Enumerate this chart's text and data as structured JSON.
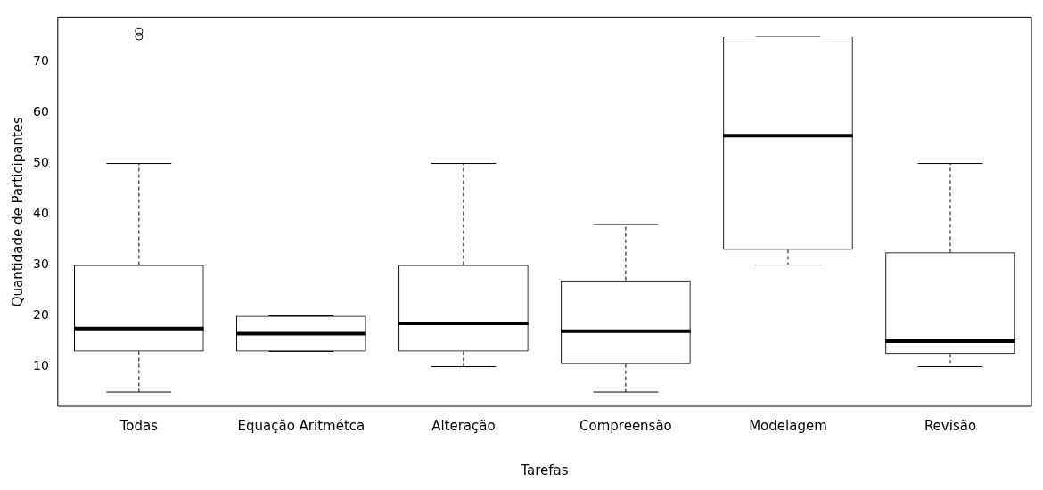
{
  "chart_data": {
    "type": "box",
    "xlabel": "Tarefas",
    "ylabel": "Quantidade de Participantes",
    "categories": [
      "Todas",
      "Equação Aritmétca",
      "Alteração",
      "Compreensão",
      "Modelagem",
      "Revisão"
    ],
    "boxes": [
      {
        "low": 5,
        "q1": 13,
        "median": 17.5,
        "q3": 30,
        "high": 50,
        "outliers": [
          76,
          75
        ]
      },
      {
        "low": 13,
        "q1": 13,
        "median": 16.5,
        "q3": 20,
        "high": 20
      },
      {
        "low": 10,
        "q1": 13,
        "median": 18.5,
        "q3": 30,
        "high": 50
      },
      {
        "low": 5,
        "q1": 10.5,
        "median": 17,
        "q3": 27,
        "high": 38
      },
      {
        "low": 30,
        "q1": 33,
        "median": 55.5,
        "q3": 75,
        "high": 75
      },
      {
        "low": 10,
        "q1": 12.5,
        "median": 15,
        "q3": 32.5,
        "high": 50
      }
    ],
    "color": "#000000",
    "ylim": [
      2.2,
      78.8
    ],
    "yticks": [
      10,
      20,
      30,
      40,
      50,
      60,
      70
    ],
    "grid": false,
    "legend": false
  }
}
